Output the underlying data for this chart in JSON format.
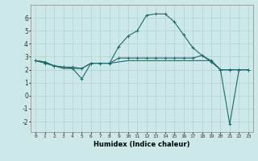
{
  "xlabel": "Humidex (Indice chaleur)",
  "x_ticks": [
    0,
    1,
    2,
    3,
    4,
    5,
    6,
    7,
    8,
    9,
    10,
    11,
    12,
    13,
    14,
    15,
    16,
    17,
    18,
    19,
    20,
    21,
    22,
    23
  ],
  "ylim": [
    -2.8,
    7.0
  ],
  "xlim": [
    -0.5,
    23.5
  ],
  "bg_color": "#cde8e8",
  "grid_color": "#b0d0d0",
  "line_color": "#1a6b6b",
  "line1_y": [
    2.7,
    2.6,
    2.3,
    2.2,
    2.1,
    1.3,
    2.5,
    2.5,
    2.5,
    3.8,
    4.6,
    5.0,
    6.2,
    6.3,
    6.3,
    5.7,
    4.7,
    3.7,
    3.1,
    2.7,
    2.0,
    2.0,
    null,
    null
  ],
  "line2_y": [
    2.7,
    2.6,
    2.3,
    2.1,
    2.1,
    2.1,
    2.5,
    2.5,
    2.5,
    2.6,
    2.7,
    2.7,
    2.7,
    2.7,
    2.7,
    2.7,
    2.7,
    2.7,
    2.7,
    2.7,
    2.0,
    2.0,
    2.0,
    2.0
  ],
  "line3_y": [
    2.7,
    2.5,
    2.3,
    2.2,
    2.2,
    2.1,
    2.5,
    2.5,
    2.5,
    2.9,
    2.9,
    2.9,
    2.9,
    2.9,
    2.9,
    2.9,
    2.9,
    2.9,
    3.1,
    2.6,
    2.0,
    2.0,
    2.0,
    2.0
  ],
  "line4_x": [
    20,
    21,
    22,
    23
  ],
  "line4_y": [
    2.0,
    -2.2,
    2.0,
    2.0
  ],
  "yticks": [
    -2,
    -1,
    0,
    1,
    2,
    3,
    4,
    5,
    6
  ],
  "marker": "+"
}
